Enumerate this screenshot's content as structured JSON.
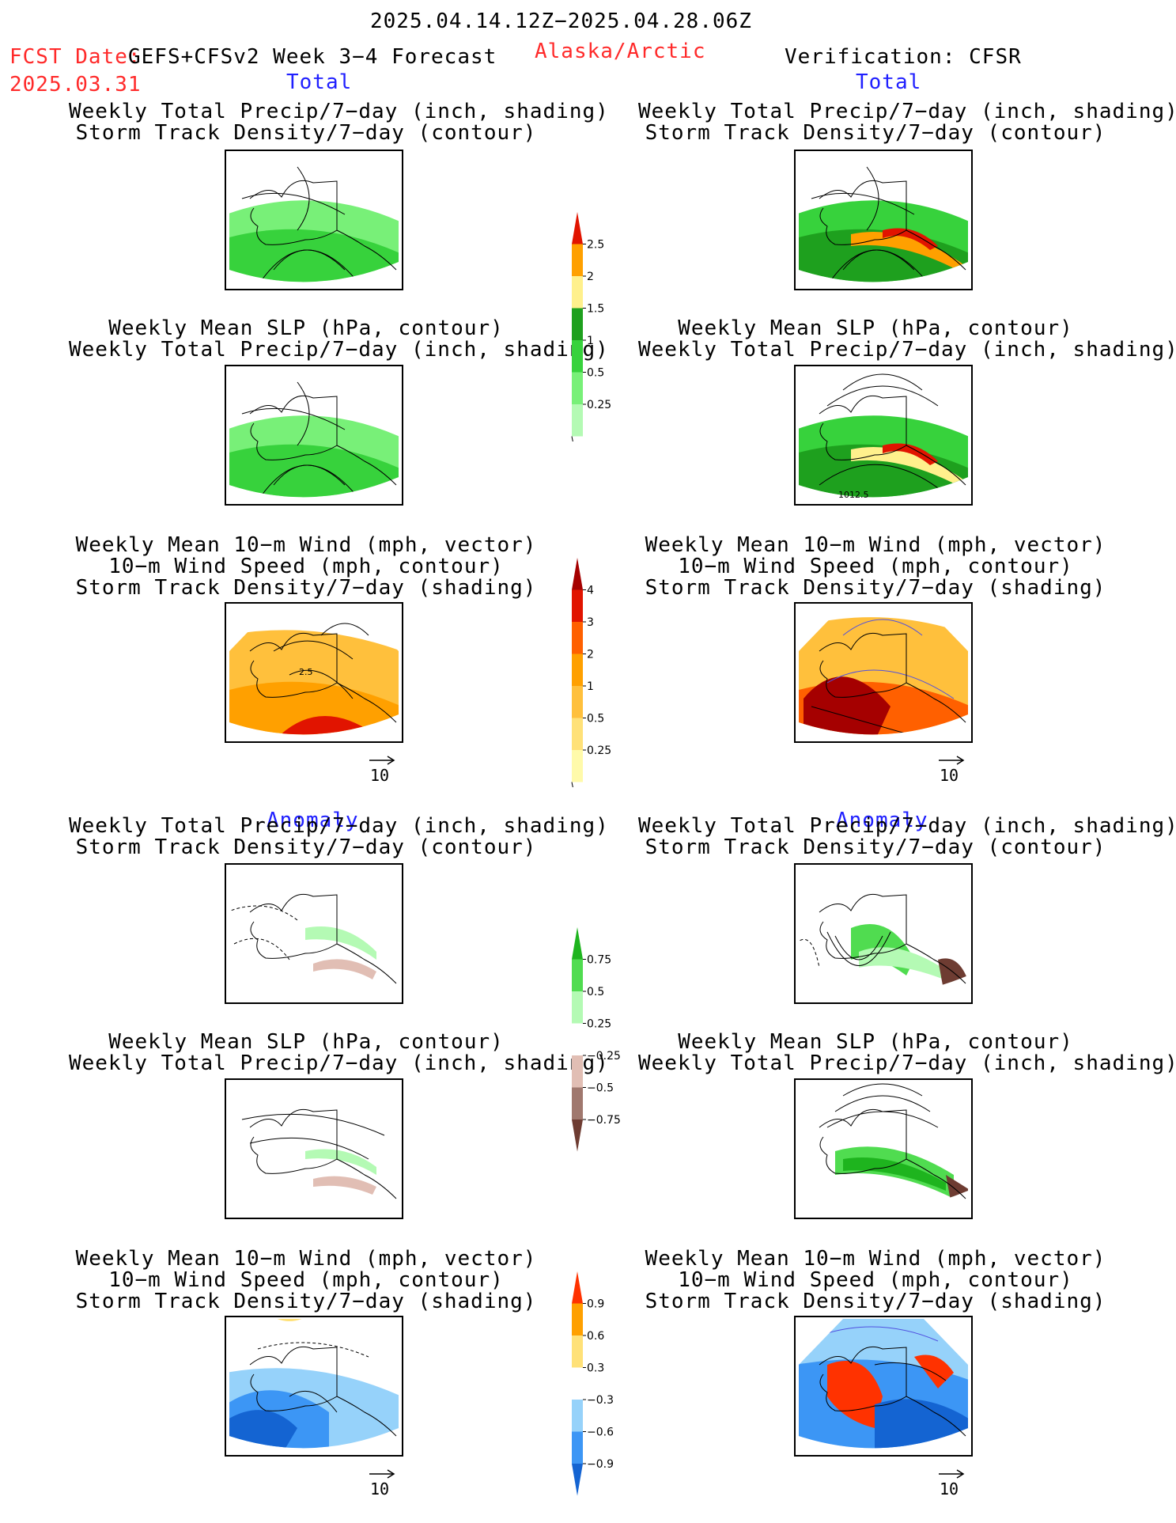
{
  "header": {
    "date_range": "2025.04.14.12Z−2025.04.28.06Z",
    "fcst_label": "FCST Date:",
    "model": "GEFS+CFSv2 Week 3−4 Forecast",
    "region": "Alaska/Arctic",
    "verification": "Verification: CFSR",
    "fcst_date": "2025.03.31"
  },
  "sections": {
    "total_left": "Total",
    "total_right": "Total",
    "anom_left": "Anomaly",
    "anom_right": "Anomaly"
  },
  "panel_titles": {
    "precip_storm": [
      "Weekly Total Precip/7−day (inch, shading)",
      "Storm Track Density/7−day (contour)"
    ],
    "slp_precip": [
      "Weekly Mean SLP (hPa, contour)",
      "Weekly Total Precip/7−day (inch, shading)"
    ],
    "wind": [
      "Weekly Mean 10−m Wind (mph, vector)",
      "10−m Wind Speed (mph, contour)",
      "Storm Track Density/7−day (shading)"
    ]
  },
  "vector_ref": "10",
  "contour_labels": {
    "slp_cfsr": "1012.5",
    "wind_fcst": "2.5"
  },
  "colors": {
    "precip": [
      "#b4fab4",
      "#78f078",
      "#37d23c",
      "#1ea01e",
      "#fff08c",
      "#ffa000",
      "#e11400"
    ],
    "storm": [
      "#fffaaa",
      "#ffe178",
      "#ffc03c",
      "#ffa000",
      "#ff6000",
      "#e11400",
      "#a50000"
    ],
    "precip_anom": [
      "#6e3c32",
      "#a0786e",
      "#e1beb4",
      "#ffffff",
      "#b4fab4",
      "#50dc50",
      "#1eb41e"
    ],
    "wind_anom": [
      "#1464d2",
      "#3c96f5",
      "#96d2fa",
      "#ffffff",
      "#ffe178",
      "#ffa000",
      "#ff3200"
    ]
  },
  "chart_data": [
    {
      "type": "heatmap",
      "name_ref": "colorbar-precip-total",
      "levels": [
        0.25,
        0.5,
        1,
        1.5,
        2,
        2.5
      ],
      "tick_labels": [
        "0.25",
        "0.5",
        "1",
        "1.5",
        "2",
        "2.5"
      ]
    },
    {
      "type": "heatmap",
      "name_ref": "colorbar-storm-total",
      "levels": [
        0.25,
        0.5,
        1,
        2,
        3,
        4
      ],
      "tick_labels": [
        "0.25",
        "0.5",
        "1",
        "2",
        "3",
        "4"
      ]
    },
    {
      "type": "heatmap",
      "name_ref": "colorbar-precip-anom",
      "levels": [
        -0.75,
        -0.5,
        -0.25,
        0.25,
        0.5,
        0.75
      ],
      "tick_labels": [
        "−0.75",
        "−0.5",
        "−0.25",
        "0.25",
        "0.5",
        "0.75"
      ]
    },
    {
      "type": "heatmap",
      "name_ref": "colorbar-wind-anom",
      "levels": [
        -0.9,
        -0.6,
        -0.3,
        0.3,
        0.6,
        0.9
      ],
      "tick_labels": [
        "−0.9",
        "−0.6",
        "−0.3",
        "0.3",
        "0.6",
        "0.9"
      ]
    }
  ]
}
